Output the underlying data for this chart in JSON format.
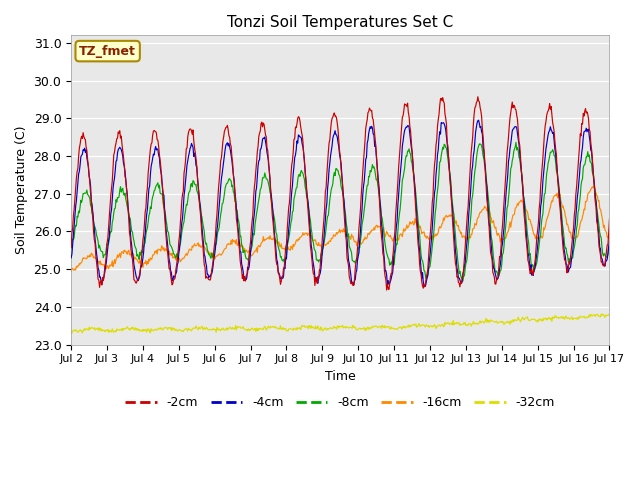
{
  "title": "Tonzi Soil Temperatures Set C",
  "xlabel": "Time",
  "ylabel": "Soil Temperature (C)",
  "xlim": [
    0,
    15
  ],
  "ylim": [
    23.0,
    31.2
  ],
  "yticks": [
    23.0,
    24.0,
    25.0,
    26.0,
    27.0,
    28.0,
    29.0,
    30.0,
    31.0
  ],
  "xtick_labels": [
    "Jul 2",
    "Jul 3",
    "Jul 4",
    "Jul 5",
    "Jul 6",
    "Jul 7",
    "Jul 8",
    "Jul 9",
    "Jul 10",
    "Jul 11",
    "Jul 12",
    "Jul 13",
    "Jul 14",
    "Jul 15",
    "Jul 16",
    "Jul 17"
  ],
  "colors": {
    "-2cm": "#cc0000",
    "-4cm": "#0000cc",
    "-8cm": "#00aa00",
    "-16cm": "#ff8800",
    "-32cm": "#dddd00"
  },
  "legend_label": "TZ_fmet",
  "bg_color": "#e8e8e8",
  "annotation_box_facecolor": "#ffffcc",
  "annotation_box_edgecolor": "#aa8800",
  "annotation_text_color": "#882200"
}
